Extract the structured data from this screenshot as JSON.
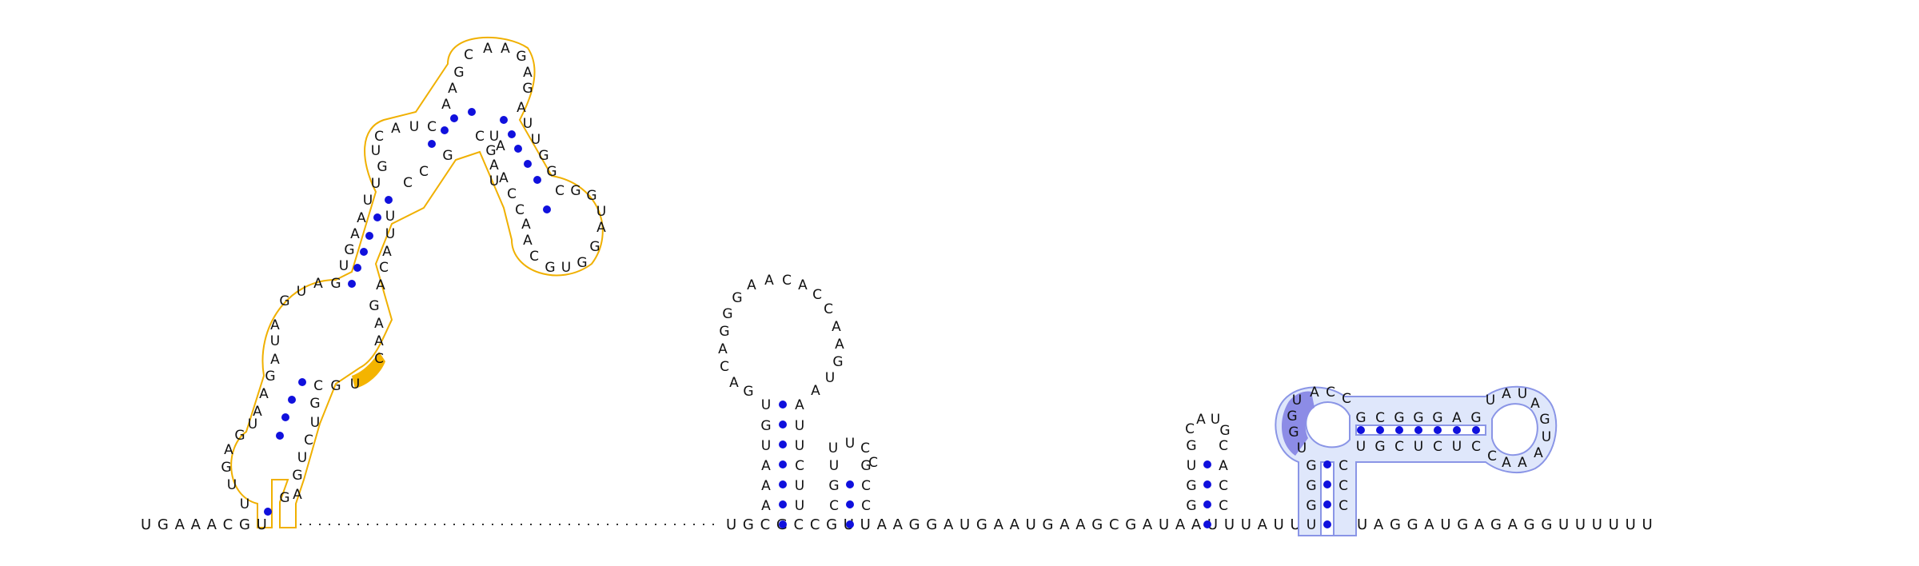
{
  "colors": {
    "nucleotide": "#111111",
    "pair_dot": "#1010dd",
    "orange_outline": "#f0b000",
    "orange_highlight": "#f4b400",
    "blue_outline": "#8a95e6",
    "blue_fill": "#dfe7fb",
    "blue_highlight": "#8c8ce6",
    "backbone": "#333333"
  },
  "base_line": {
    "left_bases": "U G A A A C G U",
    "right_bases": "U G C G C C G U U A A G G A U G A A U G A A G C G A U A A U U U A U U U G A U A G G A U G A G A G G U U U U U U"
  },
  "hairpin_mid": {
    "stem_left": "A A U U A G U",
    "stem_right": "U U C U U A G",
    "loop": "A C G G A C A C A C C A A A G A"
  },
  "hairpin_small_mid": {
    "left": "G U U",
    "right": "C G C C",
    "loop": "U U C"
  },
  "hairpin_small_right": {
    "left": "G G U C",
    "right": "C A C G",
    "loop": "A U"
  },
  "blue_structure": {
    "stem_left": "U G G U G G",
    "stem_right": "C C C C C C",
    "bridge_top": "G C G G G A G",
    "bridge_bottom": "U G C U C U C",
    "loop_top": "U A C C",
    "loop_right": "U A U A G U A A C"
  },
  "orange_structure": {
    "lower_left": "U U G A G A U A G U G A",
    "lower_right": "G U U A U G C G C U",
    "upper_stem_left": "U G A A U U G U C",
    "upper_stem_right": "C U A A U C C G A G",
    "loop_top": "A G A C A A G G A",
    "right_arm_left": "U A A C C A C",
    "right_arm_right": "A U G G C G C",
    "right_loop": "G U A G G U G C"
  }
}
